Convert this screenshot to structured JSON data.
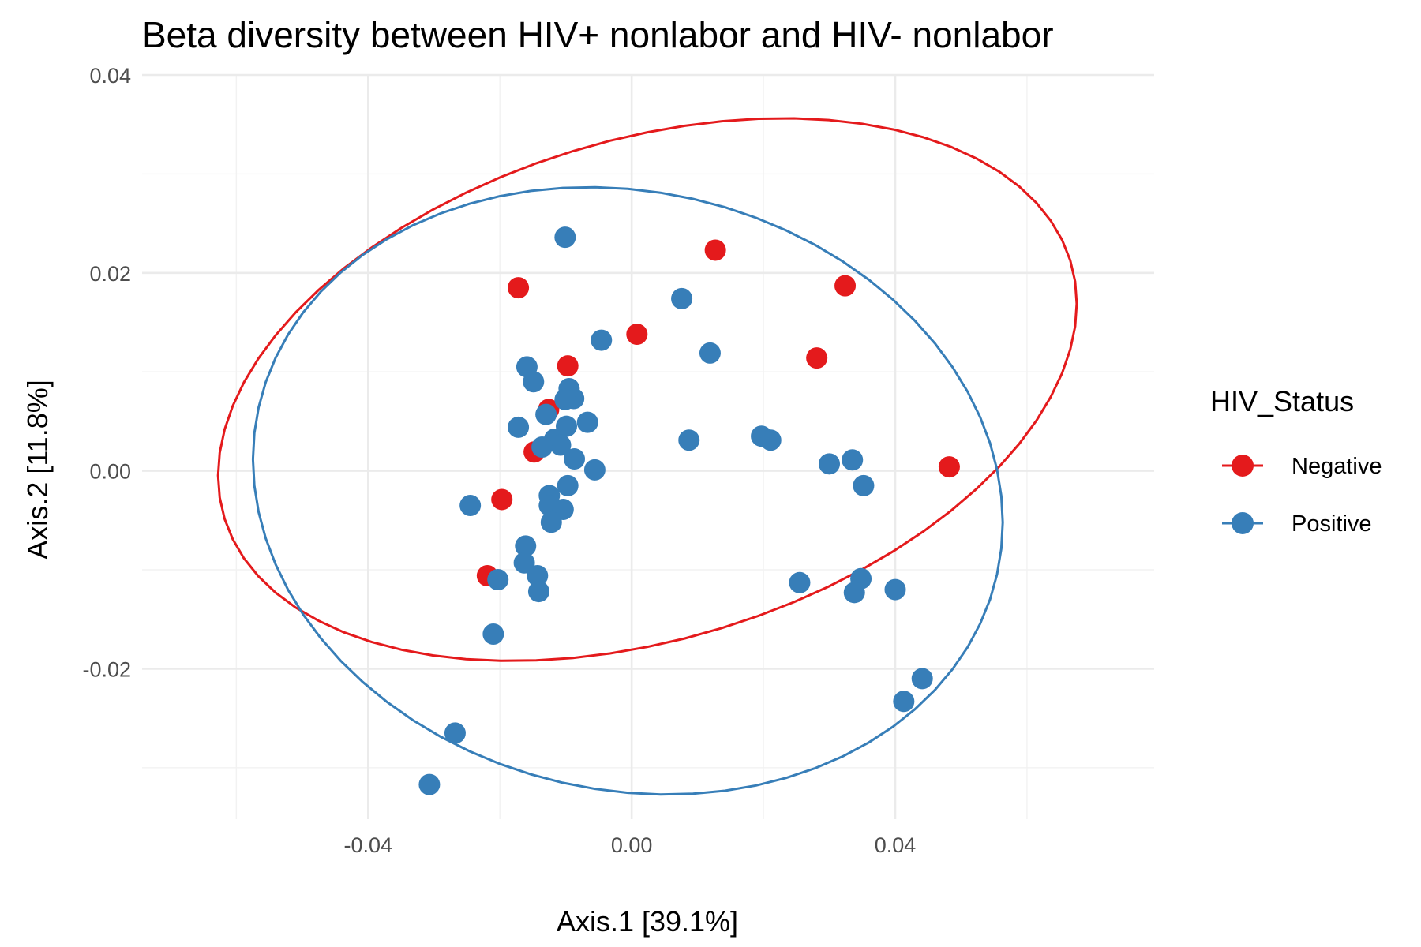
{
  "chart_data": {
    "type": "scatter",
    "title": "Beta diversity between HIV+ nonlabor and HIV- nonlabor",
    "xlabel": "Axis.1   [39.1%]",
    "ylabel": "Axis.2   [11.8%]",
    "xlim": [
      -0.0743,
      0.0793
    ],
    "ylim": [
      -0.0352,
      0.04
    ],
    "x_ticks": [
      -0.04,
      0.0,
      0.04
    ],
    "x_tick_labels": [
      "-0.04",
      "0.00",
      "0.04"
    ],
    "y_ticks": [
      -0.02,
      0.0,
      0.02,
      0.04
    ],
    "y_tick_labels": [
      "-0.02",
      "0.00",
      "0.02",
      "0.04"
    ],
    "grid": true,
    "legend": {
      "title": "HIV_Status",
      "position": "right",
      "entries": [
        "Negative",
        "Positive"
      ]
    },
    "ellipses": true,
    "series": [
      {
        "name": "Negative",
        "color": "#E41A1C",
        "points": [
          [
            -0.0172,
            0.0185
          ],
          [
            0.0127,
            0.0223
          ],
          [
            0.0324,
            0.0187
          ],
          [
            0.0008,
            0.0138
          ],
          [
            0.0281,
            0.0114
          ],
          [
            -0.0097,
            0.0106
          ],
          [
            -0.0126,
            0.0062
          ],
          [
            -0.0148,
            0.0019
          ],
          [
            0.0482,
            0.0004
          ],
          [
            -0.0197,
            -0.0029
          ],
          [
            -0.0219,
            -0.0106
          ]
        ]
      },
      {
        "name": "Positive",
        "color": "#377EB8",
        "points": [
          [
            -0.0101,
            0.0236
          ],
          [
            0.0076,
            0.0174
          ],
          [
            -0.0046,
            0.0132
          ],
          [
            0.0119,
            0.0119
          ],
          [
            -0.0159,
            0.0105
          ],
          [
            -0.0149,
            0.009
          ],
          [
            -0.0095,
            0.0083
          ],
          [
            -0.0088,
            0.0073
          ],
          [
            -0.0101,
            0.0072
          ],
          [
            -0.013,
            0.0057
          ],
          [
            -0.0067,
            0.0049
          ],
          [
            -0.0172,
            0.0044
          ],
          [
            -0.0099,
            0.0045
          ],
          [
            -0.0117,
            0.0032
          ],
          [
            -0.0108,
            0.0026
          ],
          [
            -0.0136,
            0.0024
          ],
          [
            -0.0087,
            0.0012
          ],
          [
            -0.0056,
            0.0001
          ],
          [
            0.0087,
            0.0031
          ],
          [
            0.0197,
            0.0035
          ],
          [
            0.0211,
            0.0031
          ],
          [
            0.03,
            0.0007
          ],
          [
            0.0335,
            0.0011
          ],
          [
            0.0352,
            -0.0015
          ],
          [
            -0.0097,
            -0.0015
          ],
          [
            -0.0125,
            -0.0025
          ],
          [
            -0.0125,
            -0.0035
          ],
          [
            -0.0104,
            -0.0039
          ],
          [
            -0.0122,
            -0.0052
          ],
          [
            -0.0245,
            -0.0035
          ],
          [
            -0.0161,
            -0.0076
          ],
          [
            -0.0163,
            -0.0093
          ],
          [
            -0.0143,
            -0.0106
          ],
          [
            -0.0203,
            -0.011
          ],
          [
            -0.0141,
            -0.0122
          ],
          [
            0.0255,
            -0.0113
          ],
          [
            0.0348,
            -0.0109
          ],
          [
            0.0338,
            -0.0123
          ],
          [
            0.04,
            -0.012
          ],
          [
            -0.021,
            -0.0165
          ],
          [
            0.0441,
            -0.021
          ],
          [
            0.0413,
            -0.0233
          ],
          [
            -0.0268,
            -0.0265
          ],
          [
            -0.0307,
            -0.0317
          ]
        ]
      }
    ]
  }
}
